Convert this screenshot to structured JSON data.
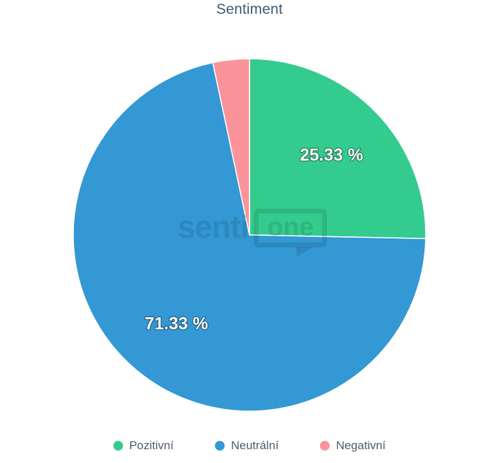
{
  "chart_data": {
    "type": "pie",
    "title": "Sentiment",
    "slices": [
      {
        "name": "Pozitivní",
        "value": 25.33,
        "label": "25.33 %",
        "color": "#34cb8e"
      },
      {
        "name": "Neutrální",
        "value": 71.33,
        "label": "71.33 %",
        "color": "#3398d4"
      },
      {
        "name": "Negativní",
        "value": 3.34,
        "label": "",
        "color": "#fa949a"
      }
    ],
    "start_angle_deg": 0,
    "direction": "clockwise",
    "legend_position": "bottom",
    "slice_border_color": "#ffffff",
    "center": [
      361,
      340
    ],
    "radius": 255,
    "label_radius": 166
  },
  "watermark": {
    "text_left": "senti",
    "text_bubble": "one"
  },
  "colors": {
    "title_text": "#3e5a73",
    "legend_text": "#4e5c6b",
    "slice_label_text": "#ffffff"
  }
}
